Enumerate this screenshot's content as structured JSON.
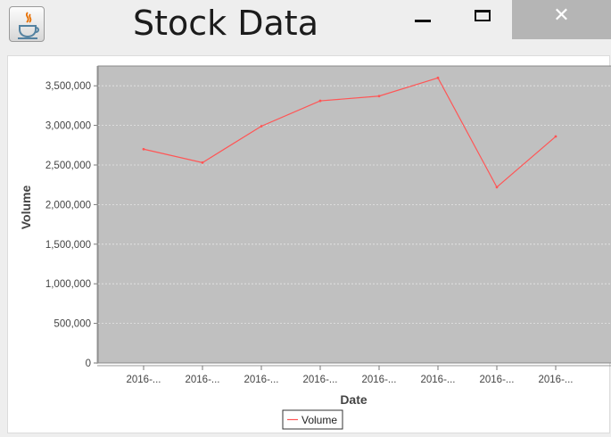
{
  "window": {
    "title": "Stock Data",
    "app_icon": "java-cup-icon",
    "controls": {
      "minimize": "minimize-icon",
      "maximize": "maximize-icon",
      "close": "close-icon",
      "close_glyph": "✕"
    }
  },
  "chart_data": {
    "type": "line",
    "xlabel": "Date",
    "ylabel": "Volume",
    "categories": [
      "2016-...",
      "2016-...",
      "2016-...",
      "2016-...",
      "2016-...",
      "2016-...",
      "2016-...",
      "2016-..."
    ],
    "series": [
      {
        "name": "Volume",
        "color": "#ff5555",
        "values": [
          2700000,
          2530000,
          2990000,
          3310000,
          3370000,
          3600000,
          2220000,
          2860000
        ]
      }
    ],
    "ylim": [
      0,
      3750000
    ],
    "yticks": [
      0,
      500000,
      1000000,
      1500000,
      2000000,
      2500000,
      3000000,
      3500000
    ],
    "ytick_labels": [
      "0",
      "500,000",
      "1,000,000",
      "1,500,000",
      "2,000,000",
      "2,500,000",
      "3,000,000",
      "3,500,000"
    ],
    "grid": true,
    "legend": "bottom-center",
    "plot_background": "#c0c0c0"
  }
}
